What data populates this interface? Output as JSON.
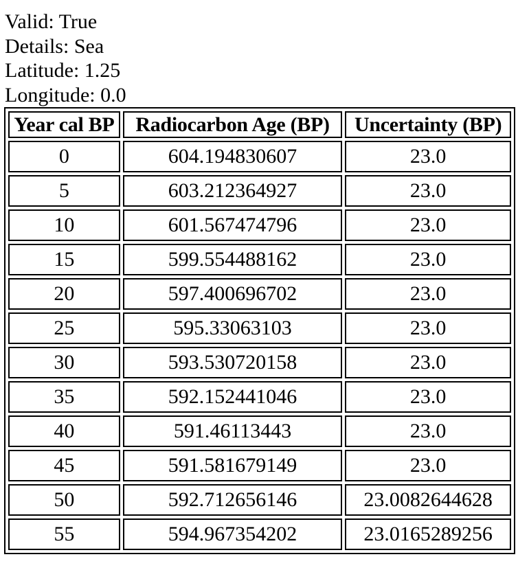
{
  "meta": {
    "valid_label": "Valid:",
    "valid_value": "True",
    "details_label": "Details:",
    "details_value": "Sea",
    "latitude_label": "Latitude:",
    "latitude_value": "1.25",
    "longitude_label": "Longitude:",
    "longitude_value": "0.0"
  },
  "table": {
    "headers": [
      "Year cal BP",
      "Radiocarbon Age (BP)",
      "Uncertainty (BP)"
    ],
    "rows": [
      [
        "0",
        "604.194830607",
        "23.0"
      ],
      [
        "5",
        "603.212364927",
        "23.0"
      ],
      [
        "10",
        "601.567474796",
        "23.0"
      ],
      [
        "15",
        "599.554488162",
        "23.0"
      ],
      [
        "20",
        "597.400696702",
        "23.0"
      ],
      [
        "25",
        "595.33063103",
        "23.0"
      ],
      [
        "30",
        "593.530720158",
        "23.0"
      ],
      [
        "35",
        "592.152441046",
        "23.0"
      ],
      [
        "40",
        "591.46113443",
        "23.0"
      ],
      [
        "45",
        "591.581679149",
        "23.0"
      ],
      [
        "50",
        "592.712656146",
        "23.0082644628"
      ],
      [
        "55",
        "594.967354202",
        "23.0165289256"
      ]
    ]
  }
}
